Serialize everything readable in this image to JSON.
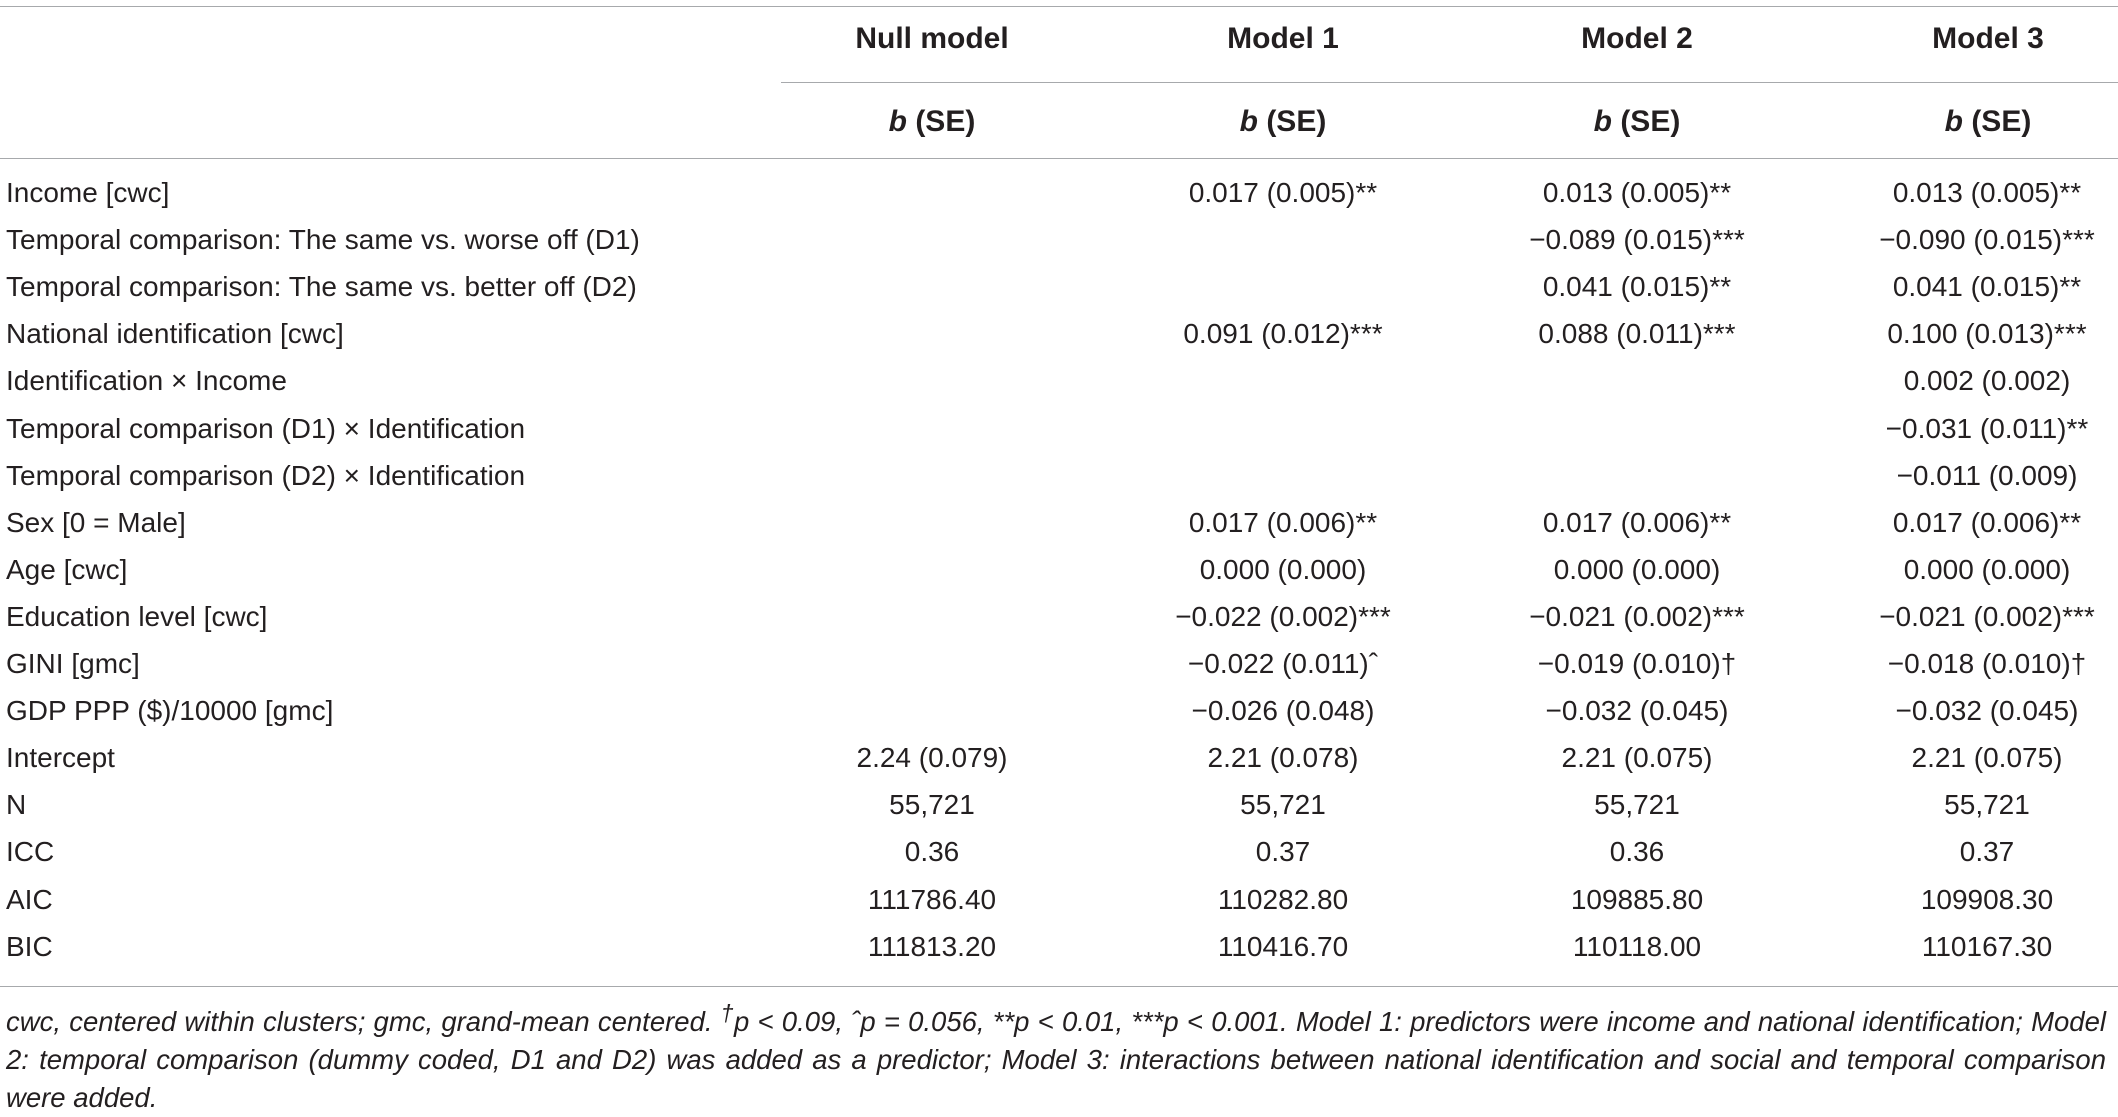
{
  "header": {
    "columns": [
      "Null model",
      "Model 1",
      "Model 2",
      "Model 3"
    ],
    "sub_b": "b",
    "sub_se": " (SE)"
  },
  "rows": [
    {
      "label": "Income [cwc]",
      "cells": [
        "",
        "0.017 (0.005)**",
        "0.013 (0.005)**",
        "0.013 (0.005)**"
      ]
    },
    {
      "label": "Temporal comparison: The same vs. worse off (D1)",
      "cells": [
        "",
        "",
        "−0.089 (0.015)***",
        "−0.090 (0.015)***"
      ]
    },
    {
      "label": "Temporal comparison: The same vs. better off (D2)",
      "cells": [
        "",
        "",
        "0.041 (0.015)**",
        "0.041 (0.015)**"
      ]
    },
    {
      "label": "National identification [cwc]",
      "cells": [
        "",
        "0.091 (0.012)***",
        "0.088 (0.011)***",
        "0.100 (0.013)***"
      ]
    },
    {
      "label": "Identification × Income",
      "cells": [
        "",
        "",
        "",
        "0.002 (0.002)"
      ]
    },
    {
      "label": "Temporal comparison (D1)  × Identification",
      "cells": [
        "",
        "",
        "",
        "−0.031 (0.011)**"
      ]
    },
    {
      "label": "Temporal comparison (D2)  × Identification",
      "cells": [
        "",
        "",
        "",
        "−0.011 (0.009)"
      ]
    },
    {
      "label": "Sex [0 = Male]",
      "cells": [
        "",
        "0.017 (0.006)**",
        "0.017 (0.006)**",
        "0.017 (0.006)**"
      ]
    },
    {
      "label": "Age [cwc]",
      "cells": [
        "",
        "0.000 (0.000)",
        "0.000 (0.000)",
        "0.000 (0.000)"
      ]
    },
    {
      "label": "Education level [cwc]",
      "cells": [
        "",
        "−0.022 (0.002)***",
        "−0.021 (0.002)***",
        "−0.021 (0.002)***"
      ]
    },
    {
      "label": "GINI [gmc]",
      "cells": [
        "",
        "−0.022 (0.011)ˆ",
        "−0.019 (0.010)†",
        "−0.018 (0.010)†"
      ]
    },
    {
      "label": "GDP PPP ($)/10000 [gmc]",
      "cells": [
        "",
        "−0.026 (0.048)",
        "−0.032 (0.045)",
        "−0.032 (0.045)"
      ]
    },
    {
      "label": "Intercept",
      "cells": [
        "2.24 (0.079)",
        "2.21 (0.078)",
        "2.21 (0.075)",
        "2.21 (0.075)"
      ]
    },
    {
      "label": "N",
      "cells": [
        "55,721",
        "55,721",
        "55,721",
        "55,721"
      ]
    },
    {
      "label": "ICC",
      "cells": [
        "0.36",
        "0.37",
        "0.36",
        "0.37"
      ]
    },
    {
      "label": "AIC",
      "cells": [
        "111786.40",
        "110282.80",
        "109885.80",
        "109908.30"
      ]
    },
    {
      "label": "BIC",
      "cells": [
        "111813.20",
        "110416.70",
        "110118.00",
        "110167.30"
      ]
    }
  ],
  "footnote": {
    "part1": "cwc, centered within clusters; gmc, grand-mean centered. ",
    "dagger": "†",
    "part2": "p < 0.09, ˆp = 0.056, **p < 0.01, ***p < 0.001. Model 1: predictors were income and national identification; Model 2: temporal comparison (dummy coded, D1 and D2) was added as a predictor; Model 3: interactions between national identification and social and temporal comparison were added."
  }
}
